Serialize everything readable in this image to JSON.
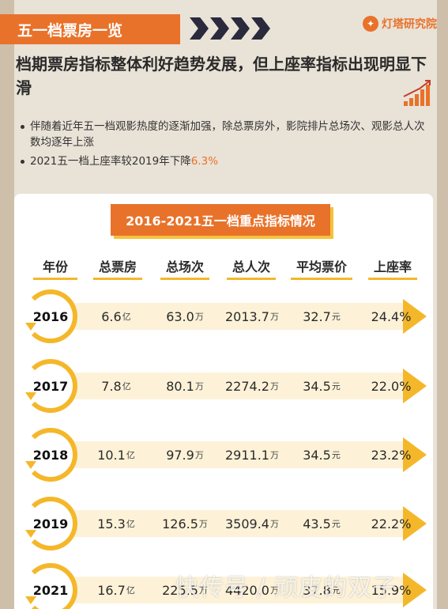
{
  "section_tag": "五一档票房一览",
  "brand": {
    "name": "灯塔研究院",
    "icon": "lighthouse-logo-icon"
  },
  "headline": "档期票房指标整体利好趋势发展，但上座率指标出现明显下滑",
  "bullets": [
    {
      "text": "伴随着近年五一档观影热度的逐渐加强，除总票房外，影院排片总场次、观影总人次数均逐年上涨",
      "accent": ""
    },
    {
      "text": "2021五一档上座率较2019年下降",
      "accent": "6.3%"
    }
  ],
  "colors": {
    "orange": "#e8722a",
    "yellow": "#f5b72a",
    "dark": "#2a2a3c"
  },
  "table": {
    "title": "2016-2021五一档重点指标情况",
    "headers": [
      "年份",
      "总票房",
      "总场次",
      "总人次",
      "平均票价",
      "上座率"
    ],
    "rows": [
      {
        "year": "2016",
        "box": "6.6",
        "box_unit": "亿",
        "shows": "63.0",
        "shows_unit": "万",
        "people": "2013.7",
        "people_unit": "万",
        "price": "32.7",
        "price_unit": "元",
        "rate": "24.4%"
      },
      {
        "year": "2017",
        "box": "7.8",
        "box_unit": "亿",
        "shows": "80.1",
        "shows_unit": "万",
        "people": "2274.2",
        "people_unit": "万",
        "price": "34.5",
        "price_unit": "元",
        "rate": "22.0%"
      },
      {
        "year": "2018",
        "box": "10.1",
        "box_unit": "亿",
        "shows": "97.9",
        "shows_unit": "万",
        "people": "2911.1",
        "people_unit": "万",
        "price": "34.5",
        "price_unit": "元",
        "rate": "23.2%"
      },
      {
        "year": "2019",
        "box": "15.3",
        "box_unit": "亿",
        "shows": "126.5",
        "shows_unit": "万",
        "people": "3509.4",
        "people_unit": "万",
        "price": "43.5",
        "price_unit": "元",
        "rate": "22.2%"
      },
      {
        "year": "2021",
        "box": "16.7",
        "box_unit": "亿",
        "shows": "225.5",
        "shows_unit": "万",
        "people": "4420.0",
        "people_unit": "万",
        "price": "37.8",
        "price_unit": "元",
        "rate": "15.9%"
      }
    ]
  },
  "watermark": "快传号 / 顽皮的双子"
}
